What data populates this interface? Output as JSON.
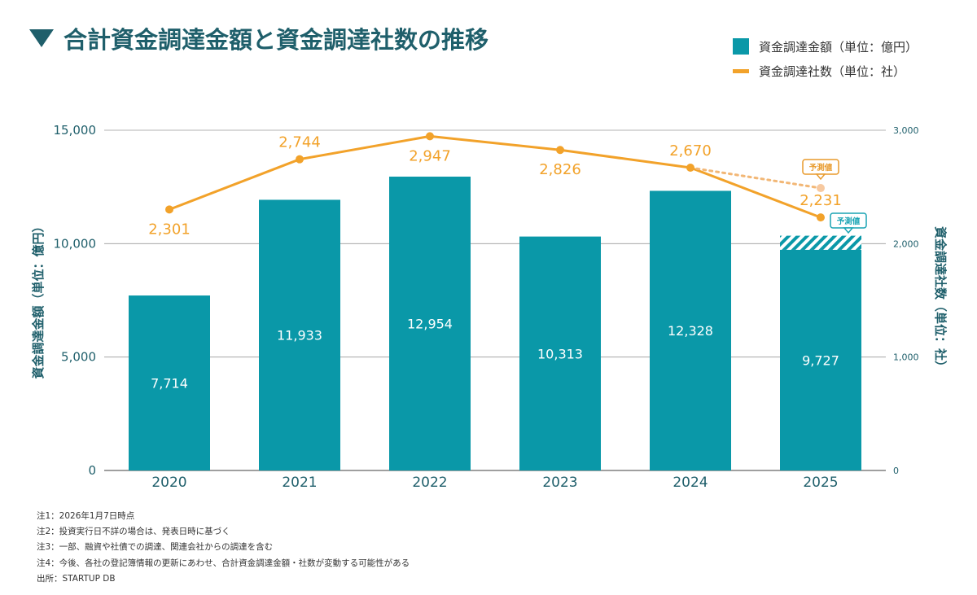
{
  "title": "合計資金調達金額と資金調達社数の推移",
  "legend": {
    "amount_label": "資金調達金額（単位：億円）",
    "count_label": "資金調達社数（単位：社）"
  },
  "chart_data": {
    "type": "bar+line",
    "categories": [
      "2020",
      "2021",
      "2022",
      "2023",
      "2024",
      "2025"
    ],
    "series": [
      {
        "name": "資金調達金額（単位：億円）",
        "type": "bar",
        "axis": "left",
        "values": [
          7714,
          11933,
          12954,
          10313,
          12328,
          9727
        ],
        "labels": [
          "7,714",
          "11,933",
          "12,954",
          "10,313",
          "12,328",
          "9,727"
        ],
        "forecast_top_2025": 10350,
        "color": "#0a98a8"
      },
      {
        "name": "資金調達社数（単位：社）",
        "type": "line",
        "axis": "right",
        "values": [
          2301,
          2744,
          2947,
          2826,
          2670,
          2231
        ],
        "labels": [
          "2,301",
          "2,744",
          "2,947",
          "2,826",
          "2,670",
          "2,231"
        ],
        "forecast_2025": 2490,
        "color": "#f2a22a"
      }
    ],
    "y_left": {
      "label": "資金調達金額（単位：億円）",
      "range": [
        0,
        15000
      ],
      "ticks": [
        0,
        5000,
        10000,
        15000
      ],
      "tick_labels": [
        "0",
        "5,000",
        "10,000",
        "15,000"
      ]
    },
    "y_right": {
      "label": "資金調達社数（単位：社）",
      "range": [
        0,
        3000
      ],
      "ticks": [
        0,
        1000,
        2000,
        3000
      ],
      "tick_labels": [
        "0",
        "1,000",
        "2,000",
        "3,000"
      ]
    },
    "forecast_tag": "予測値",
    "grid": true,
    "legend_position": "top-right"
  },
  "notes": [
    "注1：2026年1月7日時点",
    "注2：投資実行日不詳の場合は、発表日時に基づく",
    "注3：一部、融資や社債での調達、関連会社からの調達を含む",
    "注4：今後、各社の登記簿情報の更新にあわせ、合計資金調達金額・社数が変動する可能性がある",
    "出所：STARTUP DB"
  ]
}
